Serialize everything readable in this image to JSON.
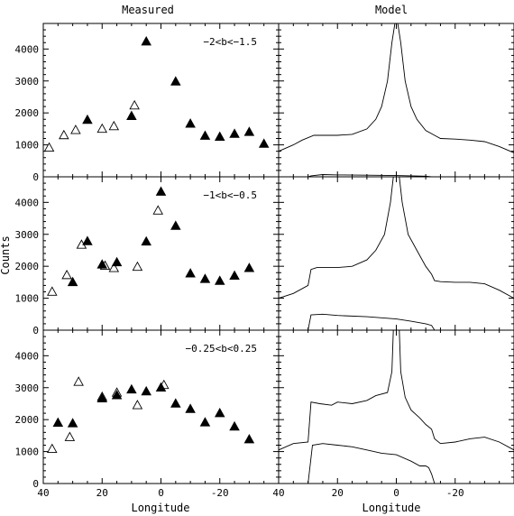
{
  "chart_data": {
    "type": "scatter",
    "column_titles": [
      "Measured",
      "Model"
    ],
    "xlabel": "Longitude",
    "ylabel": "Counts",
    "xlim": [
      40,
      -40
    ],
    "ylim": [
      0,
      4800
    ],
    "x_ticks": [
      40,
      20,
      0,
      -20
    ],
    "y_ticks": [
      0,
      1000,
      2000,
      3000,
      4000
    ],
    "grid": false,
    "marker_legend": {
      "filled": "filled triangle",
      "open": "open triangle"
    },
    "panels": [
      {
        "label": "−2<b<−1.5",
        "measured": {
          "filled": [
            {
              "x": 25,
              "y": 1800
            },
            {
              "x": 10,
              "y": 1920
            },
            {
              "x": 5,
              "y": 4250
            },
            {
              "x": -5,
              "y": 3000
            },
            {
              "x": -10,
              "y": 1680
            },
            {
              "x": -15,
              "y": 1300
            },
            {
              "x": -20,
              "y": 1270
            },
            {
              "x": -25,
              "y": 1360
            },
            {
              "x": -30,
              "y": 1420
            },
            {
              "x": -35,
              "y": 1050
            }
          ],
          "open": [
            {
              "x": 38,
              "y": 930
            },
            {
              "x": 33,
              "y": 1320
            },
            {
              "x": 29,
              "y": 1480
            },
            {
              "x": 20,
              "y": 1520
            },
            {
              "x": 16,
              "y": 1600
            },
            {
              "x": 9,
              "y": 2250
            }
          ]
        },
        "model": {
          "upper": [
            [
              40,
              800
            ],
            [
              35,
              1000
            ],
            [
              32,
              1150
            ],
            [
              28,
              1300
            ],
            [
              25,
              1300
            ],
            [
              20,
              1300
            ],
            [
              15,
              1330
            ],
            [
              10,
              1500
            ],
            [
              7,
              1800
            ],
            [
              5,
              2200
            ],
            [
              3,
              3000
            ],
            [
              1.5,
              4200
            ],
            [
              0.5,
              4800
            ],
            [
              -0.5,
              4800
            ],
            [
              -1.5,
              4200
            ],
            [
              -3,
              3000
            ],
            [
              -5,
              2200
            ],
            [
              -7,
              1800
            ],
            [
              -10,
              1450
            ],
            [
              -13,
              1300
            ],
            [
              -15,
              1200
            ],
            [
              -20,
              1180
            ],
            [
              -25,
              1150
            ],
            [
              -30,
              1100
            ],
            [
              -35,
              950
            ],
            [
              -40,
              750
            ]
          ],
          "lower": [
            [
              30,
              0
            ],
            [
              29,
              30
            ],
            [
              25,
              70
            ],
            [
              20,
              60
            ],
            [
              10,
              50
            ],
            [
              0,
              40
            ],
            [
              -5,
              30
            ],
            [
              -10,
              20
            ],
            [
              -12,
              0
            ]
          ]
        }
      },
      {
        "label": "−1<b<−0.5",
        "measured": {
          "filled": [
            {
              "x": 30,
              "y": 1520
            },
            {
              "x": 25,
              "y": 2800
            },
            {
              "x": 20,
              "y": 2070
            },
            {
              "x": 15,
              "y": 2140
            },
            {
              "x": 5,
              "y": 2790
            },
            {
              "x": 0,
              "y": 4350
            },
            {
              "x": -5,
              "y": 3280
            },
            {
              "x": -10,
              "y": 1790
            },
            {
              "x": -15,
              "y": 1620
            },
            {
              "x": -20,
              "y": 1560
            },
            {
              "x": -25,
              "y": 1720
            },
            {
              "x": -30,
              "y": 1960
            }
          ],
          "open": [
            {
              "x": 37,
              "y": 1220
            },
            {
              "x": 32,
              "y": 1740
            },
            {
              "x": 27,
              "y": 2690
            },
            {
              "x": 19,
              "y": 2030
            },
            {
              "x": 16,
              "y": 1960
            },
            {
              "x": 8,
              "y": 2000
            },
            {
              "x": 1,
              "y": 3760
            }
          ]
        },
        "model": {
          "upper": [
            [
              40,
              1000
            ],
            [
              35,
              1150
            ],
            [
              30,
              1400
            ],
            [
              29,
              1900
            ],
            [
              27,
              1960
            ],
            [
              20,
              1960
            ],
            [
              15,
              2000
            ],
            [
              10,
              2200
            ],
            [
              7,
              2500
            ],
            [
              4,
              3000
            ],
            [
              2,
              4000
            ],
            [
              1,
              4800
            ],
            [
              -1,
              4800
            ],
            [
              -2,
              4000
            ],
            [
              -4,
              3000
            ],
            [
              -7,
              2500
            ],
            [
              -10,
              2000
            ],
            [
              -12,
              1750
            ],
            [
              -13,
              1550
            ],
            [
              -15,
              1520
            ],
            [
              -20,
              1500
            ],
            [
              -25,
              1500
            ],
            [
              -30,
              1450
            ],
            [
              -35,
              1250
            ],
            [
              -40,
              1000
            ]
          ],
          "lower": [
            [
              30,
              0
            ],
            [
              29,
              480
            ],
            [
              25,
              500
            ],
            [
              20,
              460
            ],
            [
              10,
              420
            ],
            [
              0,
              350
            ],
            [
              -5,
              280
            ],
            [
              -10,
              200
            ],
            [
              -12,
              150
            ],
            [
              -13,
              0
            ]
          ]
        }
      },
      {
        "label": "−0.25<b<0.25",
        "measured": {
          "filled": [
            {
              "x": 35,
              "y": 1920
            },
            {
              "x": 30,
              "y": 1900
            },
            {
              "x": 20,
              "y": 2680
            },
            {
              "x": 15,
              "y": 2780
            },
            {
              "x": 10,
              "y": 2960
            },
            {
              "x": 5,
              "y": 2900
            },
            {
              "x": 0,
              "y": 3020
            },
            {
              "x": -5,
              "y": 2520
            },
            {
              "x": -10,
              "y": 2350
            },
            {
              "x": -15,
              "y": 1930
            },
            {
              "x": -20,
              "y": 2220
            },
            {
              "x": -25,
              "y": 1800
            },
            {
              "x": -30,
              "y": 1400
            }
          ],
          "open": [
            {
              "x": 37,
              "y": 1100
            },
            {
              "x": 31,
              "y": 1470
            },
            {
              "x": 28,
              "y": 3200
            },
            {
              "x": 20,
              "y": 2730
            },
            {
              "x": 15,
              "y": 2860
            },
            {
              "x": 8,
              "y": 2470
            },
            {
              "x": -1,
              "y": 3100
            }
          ]
        },
        "model": {
          "upper": [
            [
              40,
              1050
            ],
            [
              35,
              1250
            ],
            [
              30,
              1300
            ],
            [
              29,
              2550
            ],
            [
              26,
              2500
            ],
            [
              22,
              2450
            ],
            [
              20,
              2550
            ],
            [
              15,
              2500
            ],
            [
              10,
              2600
            ],
            [
              7,
              2750
            ],
            [
              3,
              2850
            ],
            [
              1.5,
              3500
            ],
            [
              1,
              4800
            ],
            [
              -1,
              4800
            ],
            [
              -1.5,
              3500
            ],
            [
              -3,
              2700
            ],
            [
              -5,
              2300
            ],
            [
              -8,
              2050
            ],
            [
              -10,
              1850
            ],
            [
              -12,
              1700
            ],
            [
              -13,
              1400
            ],
            [
              -15,
              1250
            ],
            [
              -20,
              1300
            ],
            [
              -25,
              1400
            ],
            [
              -30,
              1450
            ],
            [
              -35,
              1300
            ],
            [
              -40,
              1050
            ]
          ],
          "lower": [
            [
              30,
              0
            ],
            [
              28.5,
              1200
            ],
            [
              25,
              1250
            ],
            [
              20,
              1200
            ],
            [
              15,
              1150
            ],
            [
              10,
              1050
            ],
            [
              5,
              950
            ],
            [
              0,
              900
            ],
            [
              -5,
              700
            ],
            [
              -8,
              550
            ],
            [
              -10,
              550
            ],
            [
              -11,
              500
            ],
            [
              -12,
              300
            ],
            [
              -13,
              0
            ]
          ]
        }
      }
    ]
  }
}
